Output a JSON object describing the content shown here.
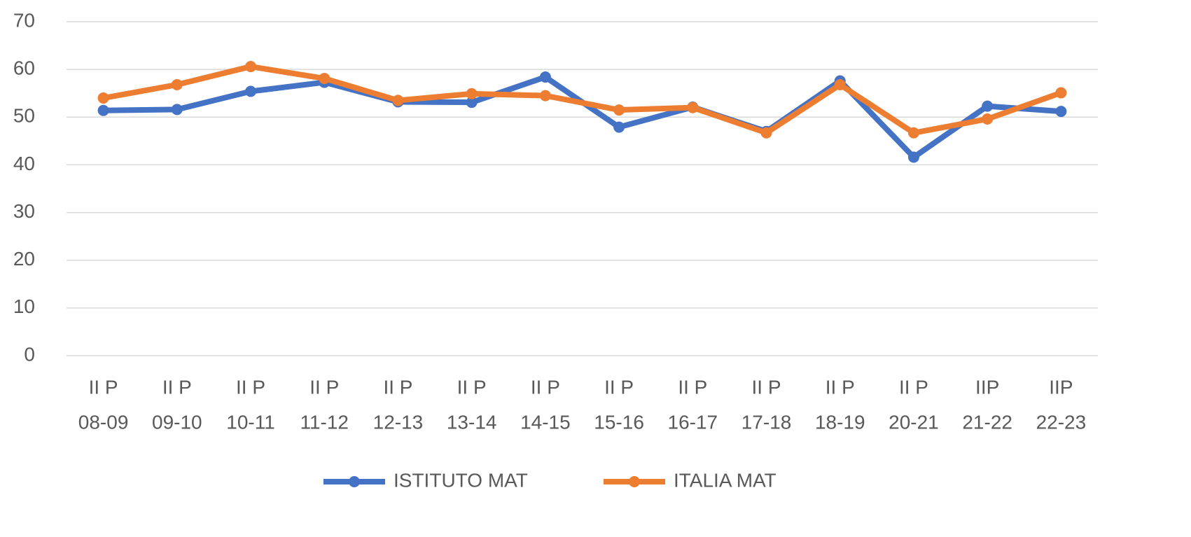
{
  "chart_data": {
    "type": "line",
    "categories": [
      [
        "II P",
        "08-09"
      ],
      [
        "II P",
        "09-10"
      ],
      [
        "II P",
        "10-11"
      ],
      [
        "II P",
        "11-12"
      ],
      [
        "II P",
        "12-13"
      ],
      [
        "II P",
        "13-14"
      ],
      [
        "II P",
        "14-15"
      ],
      [
        "II P",
        "15-16"
      ],
      [
        "II P",
        "16-17"
      ],
      [
        "II P",
        "17-18"
      ],
      [
        "II P",
        "18-19"
      ],
      [
        "II P",
        "20-21"
      ],
      [
        "IIP",
        "21-22"
      ],
      [
        "IIP",
        "22-23"
      ]
    ],
    "series": [
      {
        "name": "ISTITUTO MAT",
        "color": "#4472c4",
        "values": [
          51.4,
          51.6,
          55.4,
          57.3,
          53.2,
          53.1,
          58.4,
          47.9,
          52.1,
          47,
          57.6,
          41.6,
          52.3,
          51.2
        ]
      },
      {
        "name": "ITALIA MAT",
        "color": "#ed7d31",
        "values": [
          54,
          56.8,
          60.6,
          58.1,
          53.5,
          54.9,
          54.5,
          51.5,
          52,
          46.7,
          56.8,
          46.7,
          49.6,
          55.1
        ]
      }
    ],
    "ylim": [
      0,
      70
    ],
    "yticks": [
      0,
      10,
      20,
      30,
      40,
      50,
      60,
      70
    ],
    "grid": true,
    "legend": "bottom"
  }
}
